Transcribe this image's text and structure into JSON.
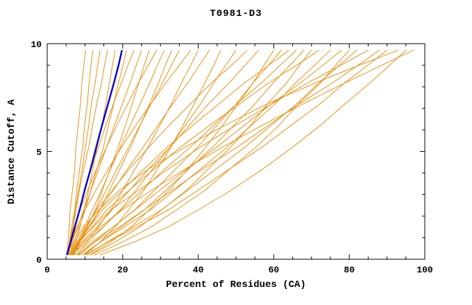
{
  "page": {
    "background": "#ffffff"
  },
  "chart_data": {
    "type": "line",
    "title": "T0981-D3",
    "xlabel": "Percent of Residues (CA)",
    "ylabel": "Distance Cutoff, A",
    "xlim": [
      0,
      100
    ],
    "ylim": [
      0,
      10
    ],
    "xticks": [
      0,
      20,
      40,
      60,
      80,
      100
    ],
    "yticks": [
      0,
      5,
      10
    ],
    "x_minor_step": 5,
    "y_minor_step": 1,
    "grid": false,
    "legend": "none",
    "colors": {
      "line": "#e69113",
      "highlight": "#0000cc",
      "axis": "#000000",
      "text": "#000000"
    },
    "y_values": [
      0.2,
      0.8,
      1.5,
      2.3,
      3.2,
      4.2,
      5.2,
      6.2,
      7.2,
      8.2,
      9.0,
      9.7
    ],
    "series": [
      {
        "highlight": false,
        "xs": [
          5.2,
          5.5,
          5.8,
          6.1,
          6.7,
          7.3,
          7.6,
          8.2,
          8.8,
          9.2,
          9.7,
          10.2
        ]
      },
      {
        "highlight": false,
        "xs": [
          5.4,
          5.9,
          6.5,
          7.3,
          7.8,
          8.6,
          9.4,
          9.9,
          10.6,
          11.1,
          11.6,
          12.1
        ]
      },
      {
        "highlight": false,
        "xs": [
          5.8,
          6.3,
          6.8,
          7.4,
          8.3,
          9.3,
          10.1,
          11.0,
          11.7,
          12.7,
          13.4,
          14.0
        ]
      },
      {
        "highlight": false,
        "xs": [
          5.3,
          5.9,
          6.8,
          7.7,
          8.5,
          9.7,
          11.0,
          12.0,
          13.1,
          14.4,
          15.2,
          16.0
        ]
      },
      {
        "highlight": false,
        "xs": [
          6.6,
          7.6,
          8.7,
          9.7,
          11.0,
          12.1,
          13.2,
          14.5,
          15.5,
          16.5,
          17.3,
          18.0
        ]
      },
      {
        "highlight": true,
        "xs": [
          5.2,
          6.2,
          7.3,
          8.6,
          9.9,
          11.5,
          13.0,
          14.5,
          16.1,
          17.7,
          18.9,
          19.8
        ]
      },
      {
        "highlight": false,
        "xs": [
          6.0,
          7.1,
          8.5,
          10.1,
          11.5,
          13.2,
          14.9,
          16.2,
          17.6,
          18.9,
          20.1,
          21.0
        ]
      },
      {
        "highlight": false,
        "xs": [
          6.2,
          6.7,
          7.5,
          8.6,
          10.0,
          11.7,
          13.6,
          15.5,
          17.5,
          19.7,
          21.4,
          23.0
        ]
      },
      {
        "highlight": false,
        "xs": [
          5.6,
          6.6,
          8.1,
          9.7,
          11.6,
          13.7,
          15.7,
          17.8,
          19.9,
          22.0,
          23.6,
          25.0
        ]
      },
      {
        "highlight": false,
        "xs": [
          7.3,
          8.7,
          10.6,
          12.8,
          14.6,
          16.7,
          18.8,
          20.7,
          22.5,
          24.3,
          25.7,
          27.0
        ]
      },
      {
        "highlight": false,
        "xs": [
          5.2,
          6.0,
          7.1,
          8.7,
          10.7,
          13.1,
          15.7,
          18.4,
          21.3,
          24.2,
          26.8,
          29.0
        ]
      },
      {
        "highlight": false,
        "xs": [
          6.8,
          8.0,
          9.9,
          12.0,
          14.4,
          16.8,
          19.4,
          22.0,
          24.6,
          27.2,
          29.2,
          31.0
        ]
      },
      {
        "highlight": false,
        "xs": [
          6.7,
          8.6,
          11.2,
          14.0,
          16.5,
          19.3,
          22.1,
          24.6,
          27.1,
          29.5,
          31.3,
          33.0
        ]
      },
      {
        "highlight": false,
        "xs": [
          6.9,
          8.3,
          10.5,
          13.0,
          15.6,
          18.5,
          21.6,
          24.5,
          27.5,
          30.6,
          32.9,
          35.0
        ]
      },
      {
        "highlight": false,
        "xs": [
          5.4,
          6.3,
          7.9,
          10.0,
          12.9,
          16.2,
          19.7,
          23.4,
          27.4,
          31.5,
          35.0,
          38.0
        ]
      },
      {
        "highlight": false,
        "xs": [
          8.0,
          10.4,
          13.5,
          16.9,
          20.0,
          23.3,
          26.7,
          29.8,
          32.9,
          35.6,
          38.0,
          40.0
        ]
      },
      {
        "highlight": false,
        "xs": [
          6.2,
          8.1,
          10.9,
          14.0,
          17.5,
          21.3,
          25.4,
          29.3,
          33.2,
          37.3,
          40.3,
          43.0
        ]
      },
      {
        "highlight": false,
        "xs": [
          10.0,
          14.0,
          18.0,
          21.6,
          25.6,
          29.2,
          32.8,
          35.9,
          38.9,
          41.8,
          44.1,
          46.0
        ]
      },
      {
        "highlight": false,
        "xs": [
          7.7,
          10.9,
          14.9,
          19.4,
          23.5,
          28.0,
          32.5,
          36.5,
          40.6,
          44.2,
          47.3,
          50.0
        ]
      },
      {
        "highlight": false,
        "xs": [
          6.5,
          7.9,
          10.2,
          13.2,
          17.2,
          21.8,
          26.9,
          32.2,
          37.9,
          43.6,
          48.8,
          53.0
        ]
      },
      {
        "highlight": false,
        "xs": [
          6.6,
          9.1,
          13.2,
          17.2,
          21.8,
          26.9,
          32.5,
          37.6,
          42.7,
          48.3,
          52.4,
          56.0
        ]
      },
      {
        "highlight": false,
        "xs": [
          11.4,
          16.8,
          22.2,
          27.1,
          32.2,
          37.3,
          42.0,
          46.4,
          50.5,
          54.6,
          57.4,
          60.0
        ]
      },
      {
        "highlight": false,
        "xs": [
          8.4,
          12.4,
          17.5,
          23.2,
          28.4,
          34.1,
          39.8,
          44.9,
          50.0,
          54.6,
          58.6,
          62.0
        ]
      },
      {
        "highlight": false,
        "xs": [
          6.6,
          8.3,
          11.2,
          14.7,
          19.9,
          25.7,
          31.8,
          38.5,
          45.4,
          52.4,
          58.7,
          64.0
        ]
      },
      {
        "highlight": false,
        "xs": [
          6.9,
          10.0,
          14.8,
          19.6,
          25.1,
          31.2,
          37.9,
          44.0,
          50.1,
          56.9,
          61.7,
          66.0
        ]
      },
      {
        "highlight": false,
        "xs": [
          9.7,
          14.1,
          19.6,
          25.8,
          31.4,
          37.6,
          43.8,
          49.4,
          55.0,
          59.9,
          64.3,
          68.0
        ]
      },
      {
        "highlight": false,
        "xs": [
          11.5,
          18.0,
          24.5,
          30.4,
          36.9,
          42.7,
          48.6,
          53.8,
          58.3,
          63.5,
          66.8,
          70.0
        ]
      },
      {
        "highlight": false,
        "xs": [
          6.7,
          8.6,
          11.9,
          15.9,
          21.7,
          28.4,
          35.3,
          42.9,
          50.9,
          58.8,
          66.1,
          72.0
        ]
      },
      {
        "highlight": false,
        "xs": [
          9.2,
          14.1,
          20.4,
          27.4,
          33.7,
          40.7,
          47.7,
          54.0,
          60.3,
          65.9,
          70.8,
          75.0
        ]
      },
      {
        "highlight": false,
        "xs": [
          8.2,
          11.8,
          17.5,
          23.3,
          29.8,
          37.0,
          44.9,
          52.1,
          59.3,
          67.2,
          73.0,
          78.0
        ]
      },
      {
        "highlight": false,
        "xs": [
          12.5,
          20.0,
          27.5,
          34.3,
          41.8,
          48.5,
          55.3,
          61.3,
          66.5,
          72.5,
          76.4,
          80.0
        ]
      },
      {
        "highlight": false,
        "xs": [
          10.6,
          15.9,
          22.7,
          30.3,
          37.2,
          44.8,
          52.4,
          59.2,
          66.0,
          72.1,
          77.4,
          82.0
        ]
      },
      {
        "highlight": false,
        "xs": [
          5.8,
          8.2,
          12.2,
          17.0,
          24.2,
          32.2,
          40.5,
          49.8,
          59.4,
          69.2,
          77.8,
          85.0
        ]
      },
      {
        "highlight": false,
        "xs": [
          8.5,
          12.6,
          19.1,
          25.7,
          33.1,
          41.3,
          50.3,
          58.5,
          66.7,
          75.7,
          82.3,
          88.0
        ]
      },
      {
        "highlight": false,
        "xs": [
          10.1,
          16.1,
          23.7,
          32.2,
          39.9,
          48.4,
          56.9,
          64.5,
          72.2,
          78.9,
          84.9,
          90.0
        ]
      },
      {
        "highlight": false,
        "xs": [
          6.3,
          7.3,
          9.5,
          13.8,
          19.1,
          26.9,
          36.5,
          46.9,
          58.2,
          71.3,
          82.6,
          93.0
        ]
      },
      {
        "highlight": false,
        "xs": [
          14.0,
          23.0,
          32.0,
          40.1,
          48.7,
          57.2,
          65.0,
          72.3,
          78.8,
          85.6,
          90.7,
          95.0
        ]
      },
      {
        "highlight": false,
        "xs": [
          7.0,
          9.5,
          14.0,
          20.0,
          27.6,
          36.7,
          46.4,
          56.8,
          67.7,
          79.1,
          88.6,
          97.0
        ]
      }
    ]
  }
}
